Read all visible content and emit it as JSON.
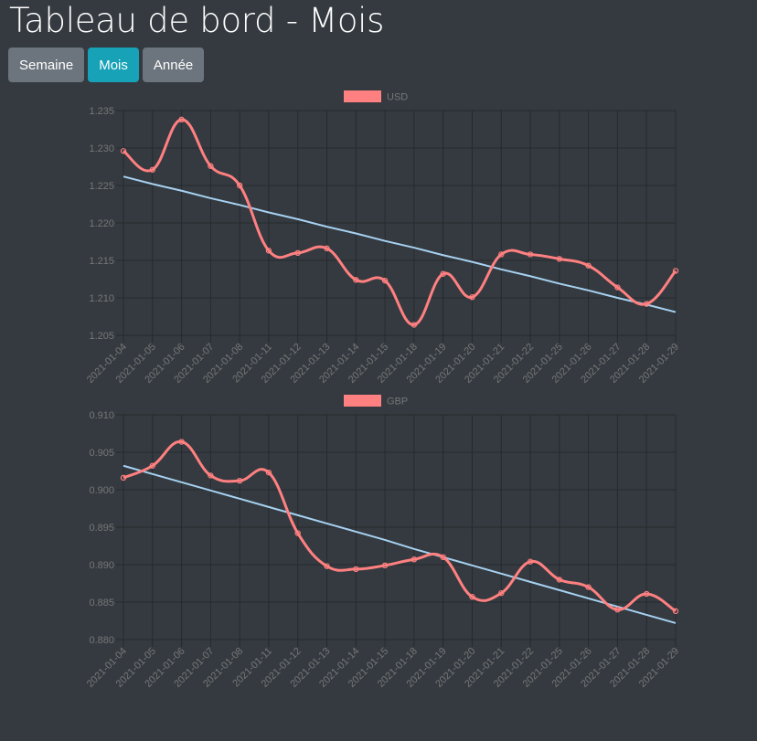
{
  "header": {
    "title": "Tableau de bord - Mois"
  },
  "period_buttons": [
    {
      "label": "Semaine",
      "active": false
    },
    {
      "label": "Mois",
      "active": true
    },
    {
      "label": "Année",
      "active": false
    }
  ],
  "colors": {
    "background": "#343a40",
    "series_line": "#ff8080",
    "trend_line": "#a7d1f0",
    "grid": "#262a2e",
    "tick_text": "#777777",
    "button": "#6c757d",
    "button_active": "#17a2b8"
  },
  "chart_data": [
    {
      "type": "line",
      "categories": [
        "2021-01-04",
        "2021-01-05",
        "2021-01-06",
        "2021-01-07",
        "2021-01-08",
        "2021-01-11",
        "2021-01-12",
        "2021-01-13",
        "2021-01-14",
        "2021-01-15",
        "2021-01-18",
        "2021-01-19",
        "2021-01-20",
        "2021-01-21",
        "2021-01-22",
        "2021-01-25",
        "2021-01-26",
        "2021-01-27",
        "2021-01-28",
        "2021-01-29"
      ],
      "series": [
        {
          "name": "USD",
          "values": [
            1.2296,
            1.2271,
            1.2338,
            1.2276,
            1.225,
            1.2163,
            1.216,
            1.2166,
            1.2124,
            1.2123,
            1.2064,
            1.2132,
            1.2101,
            1.2158,
            1.2158,
            1.2152,
            1.2143,
            1.2114,
            1.2092,
            1.2136
          ]
        },
        {
          "name": "",
          "kind": "trend",
          "values": [
            1.2262,
            1.2252,
            1.2243,
            1.2233,
            1.2224,
            1.2214,
            1.2205,
            1.2195,
            1.2186,
            1.2176,
            1.2167,
            1.2157,
            1.2148,
            1.2138,
            1.2129,
            1.2119,
            1.211,
            1.21,
            1.2091,
            1.2081
          ]
        }
      ],
      "ylim": [
        1.205,
        1.235
      ],
      "yticks": [
        "1.205",
        "1.210",
        "1.215",
        "1.220",
        "1.225",
        "1.230",
        "1.235"
      ],
      "grid": true,
      "legend": "top-center"
    },
    {
      "type": "line",
      "categories": [
        "2021-01-04",
        "2021-01-05",
        "2021-01-06",
        "2021-01-07",
        "2021-01-08",
        "2021-01-11",
        "2021-01-12",
        "2021-01-13",
        "2021-01-14",
        "2021-01-15",
        "2021-01-18",
        "2021-01-19",
        "2021-01-20",
        "2021-01-21",
        "2021-01-22",
        "2021-01-25",
        "2021-01-26",
        "2021-01-27",
        "2021-01-28",
        "2021-01-29"
      ],
      "series": [
        {
          "name": "GBP",
          "values": [
            0.9016,
            0.9032,
            0.9064,
            0.9019,
            0.9012,
            0.9023,
            0.8942,
            0.8898,
            0.8894,
            0.8899,
            0.8907,
            0.891,
            0.8857,
            0.8862,
            0.8904,
            0.888,
            0.887,
            0.884,
            0.8861,
            0.8838
          ]
        },
        {
          "name": "",
          "kind": "trend",
          "values": [
            0.9032,
            0.9021,
            0.901,
            0.8999,
            0.8988,
            0.8977,
            0.8966,
            0.8955,
            0.8944,
            0.8933,
            0.8921,
            0.891,
            0.8899,
            0.8888,
            0.8877,
            0.8866,
            0.8855,
            0.8844,
            0.8833,
            0.8822
          ]
        }
      ],
      "ylim": [
        0.88,
        0.91
      ],
      "yticks": [
        "0.880",
        "0.885",
        "0.890",
        "0.895",
        "0.900",
        "0.905",
        "0.910"
      ],
      "grid": true,
      "legend": "top-center"
    }
  ]
}
